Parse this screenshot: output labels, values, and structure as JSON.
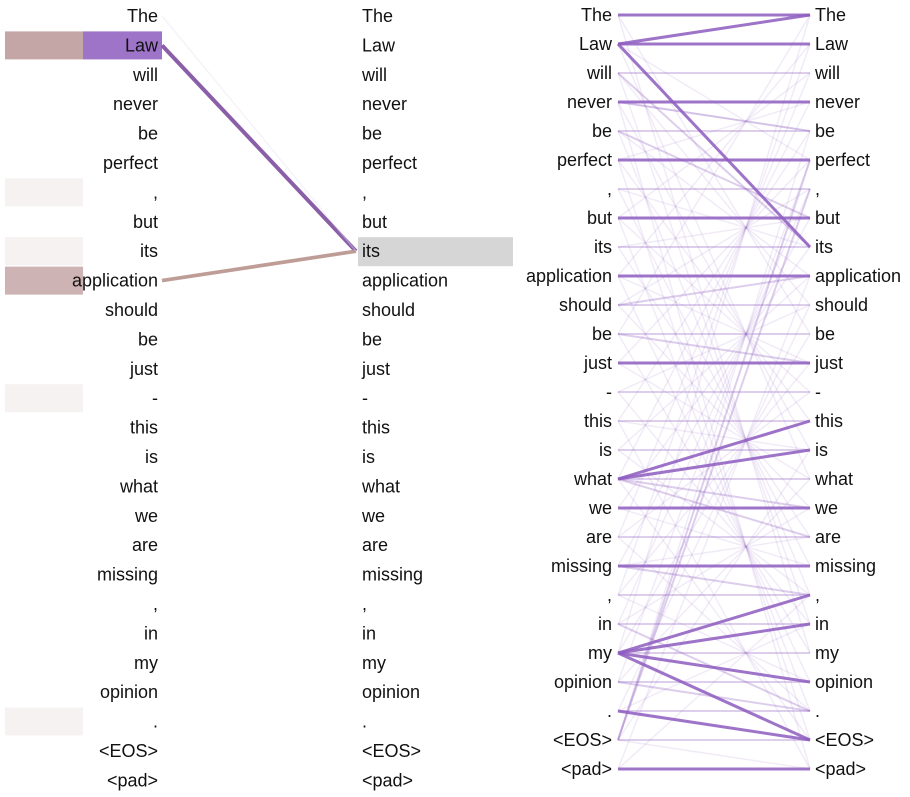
{
  "tokens": [
    "The",
    "Law",
    "will",
    "never",
    "be",
    "perfect",
    ",",
    "but",
    "its",
    "application",
    "should",
    "be",
    "just",
    "-",
    "this",
    "is",
    "what",
    "we",
    "are",
    "missing",
    ",",
    "in",
    "my",
    "opinion",
    ".",
    "<EOS>",
    "<pad>"
  ],
  "left_panel": {
    "query_index": 8,
    "highlights": [
      {
        "index": 1,
        "weight_pink": 1.0,
        "weight_purple": 1.0
      },
      {
        "index": 9,
        "weight_pink": 0.85,
        "weight_purple": 0
      }
    ],
    "faint_rows": [
      6,
      8,
      13,
      24
    ],
    "lines": [
      {
        "from": 1,
        "color": "#8a5fa8",
        "weight": 1.0
      },
      {
        "from": 9,
        "color": "#b9968f",
        "weight": 0.9
      },
      {
        "from": 0,
        "color": "#e9def0",
        "weight": 0.15
      }
    ]
  },
  "right_panel": {
    "strong_links": [
      [
        0,
        0
      ],
      [
        1,
        1
      ],
      [
        3,
        3
      ],
      [
        5,
        5
      ],
      [
        7,
        7
      ],
      [
        9,
        9
      ],
      [
        12,
        12
      ],
      [
        19,
        19
      ],
      [
        26,
        26
      ],
      [
        1,
        0
      ],
      [
        1,
        8
      ],
      [
        16,
        15
      ],
      [
        16,
        14
      ],
      [
        22,
        20
      ],
      [
        22,
        21
      ],
      [
        22,
        23
      ],
      [
        22,
        25
      ],
      [
        24,
        25
      ],
      [
        17,
        17
      ]
    ],
    "medium_links": [
      [
        2,
        2
      ],
      [
        4,
        4
      ],
      [
        6,
        6
      ],
      [
        8,
        8
      ],
      [
        10,
        10
      ],
      [
        11,
        11
      ],
      [
        13,
        13
      ],
      [
        14,
        14
      ],
      [
        15,
        15
      ],
      [
        16,
        16
      ],
      [
        18,
        18
      ],
      [
        20,
        20
      ],
      [
        21,
        21
      ],
      [
        22,
        22
      ],
      [
        23,
        23
      ],
      [
        24,
        24
      ],
      [
        25,
        25
      ],
      [
        16,
        18
      ],
      [
        16,
        17
      ],
      [
        19,
        20
      ],
      [
        21,
        24
      ],
      [
        23,
        24
      ],
      [
        25,
        6
      ],
      [
        25,
        5
      ],
      [
        2,
        8
      ],
      [
        3,
        4
      ],
      [
        10,
        9
      ],
      [
        11,
        12
      ],
      [
        4,
        7
      ]
    ]
  },
  "colors": {
    "purple": "#8d5cbf",
    "pink": "#c4a6a6",
    "query_bg": "#d6d6d6"
  }
}
